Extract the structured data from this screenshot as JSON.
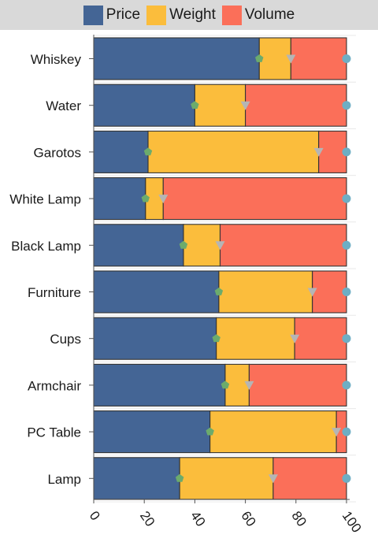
{
  "chart_data": {
    "type": "bar",
    "orientation": "horizontal",
    "stacked": true,
    "normalized": true,
    "categories": [
      "Whiskey",
      "Water",
      "Garotos",
      "White Lamp",
      "Black Lamp",
      "Furniture",
      "Cups",
      "Armchair",
      "PC Table",
      "Lamp"
    ],
    "series": [
      {
        "name": "Price",
        "color": "#446595",
        "values": [
          65.5,
          40,
          21.5,
          20.5,
          35.5,
          49.5,
          48.5,
          52,
          46,
          34
        ]
      },
      {
        "name": "Weight",
        "color": "#fbbd3c",
        "values": [
          12.5,
          20,
          67.5,
          7,
          14.5,
          37,
          31,
          9.5,
          50,
          37
        ]
      },
      {
        "name": "Volume",
        "color": "#fb6f59",
        "values": [
          22,
          40,
          11,
          72.5,
          50,
          13.5,
          20.5,
          38.5,
          4,
          29
        ]
      }
    ],
    "xlim": [
      0,
      100
    ],
    "xticks": [
      "0",
      "20",
      "40",
      "60",
      "80",
      "100"
    ],
    "grid": false,
    "legend": "top",
    "markers": {
      "Price": "pentagon",
      "Weight": "triangle-down",
      "Volume": "circle"
    },
    "marker_colors": {
      "Price": "#6cab6c",
      "Weight": "#b5b5b5",
      "Volume": "#6eaec4"
    }
  },
  "legend": {
    "items": [
      {
        "label": "Price",
        "color": "#446595"
      },
      {
        "label": "Weight",
        "color": "#fbbd3c"
      },
      {
        "label": "Volume",
        "color": "#fb6f59"
      }
    ]
  }
}
